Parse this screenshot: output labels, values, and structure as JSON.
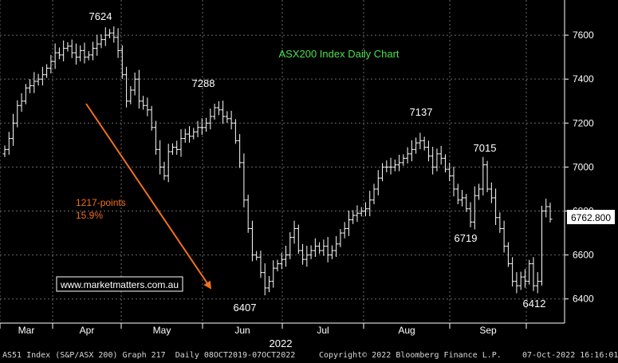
{
  "chart_data": {
    "type": "ohlc",
    "title": "ASX200 Index Daily Chart",
    "year_label": "2022",
    "x_ticks": [
      "Mar",
      "Apr",
      "May",
      "Jun",
      "Jul",
      "Aug",
      "Sep"
    ],
    "y_ticks": [
      6400,
      6600,
      6800,
      7000,
      7200,
      7400,
      7600
    ],
    "ylim": [
      6290,
      7760
    ],
    "grid": true,
    "last_value_label": "6762.800",
    "annotations": {
      "peak_label": "7624",
      "high2_label": "7288",
      "low1_label": "6407",
      "high3_label": "7137",
      "mid_low_label": "6719",
      "high4_label": "7015",
      "low2_label": "6412",
      "decline_line1": "1217-points",
      "decline_line2": "15.9%",
      "watermark": "www.marketmatters.com.au"
    },
    "series": [
      {
        "name": "AS51 Index",
        "period": "Daily",
        "range": "08OCT2019-07OCT2022",
        "close": [
          7080,
          7130,
          7200,
          7280,
          7300,
          7360,
          7370,
          7390,
          7400,
          7420,
          7450,
          7480,
          7520,
          7510,
          7540,
          7550,
          7520,
          7500,
          7530,
          7500,
          7510,
          7540,
          7560,
          7580,
          7600,
          7610,
          7590,
          7530,
          7420,
          7300,
          7350,
          7400,
          7300,
          7280,
          7260,
          7180,
          7080,
          7000,
          6960,
          7070,
          7090,
          7080,
          7130,
          7150,
          7140,
          7160,
          7180,
          7180,
          7200,
          7230,
          7270,
          7260,
          7230,
          7220,
          7200,
          7120,
          7020,
          6850,
          6720,
          6600,
          6590,
          6520,
          6450,
          6480,
          6540,
          6560,
          6580,
          6600,
          6680,
          6720,
          6620,
          6580,
          6600,
          6620,
          6640,
          6620,
          6640,
          6600,
          6620,
          6650,
          6700,
          6720,
          6760,
          6780,
          6790,
          6800,
          6810,
          6850,
          6900,
          6950,
          7000,
          7000,
          7000,
          7010,
          7020,
          7040,
          7060,
          7080,
          7110,
          7120,
          7090,
          7050,
          7000,
          7060,
          7040,
          6990,
          6960,
          6900,
          6850,
          6860,
          6810,
          6750,
          6870,
          6900,
          7010,
          6900,
          6860,
          6770,
          6720,
          6640,
          6560,
          6480,
          6460,
          6500,
          6480,
          6560,
          6460,
          6480,
          6800,
          6820,
          6762.8
        ]
      }
    ]
  },
  "footer": {
    "left": "AS51 Index (S&P/ASX 200) Graph 217  Daily 08OCT2019-07OCT2022",
    "copyright": "Copyright© 2022 Bloomberg Finance L.P.",
    "timestamp": "07-Oct-2022 16:16:01"
  },
  "colors": {
    "background": "#000000",
    "bars": "#ffffff",
    "grid": "#6a6a6a",
    "title": "#4be04b",
    "arrow": "#f07020",
    "annotation_orange": "#f07020",
    "text": "#ffffff"
  }
}
